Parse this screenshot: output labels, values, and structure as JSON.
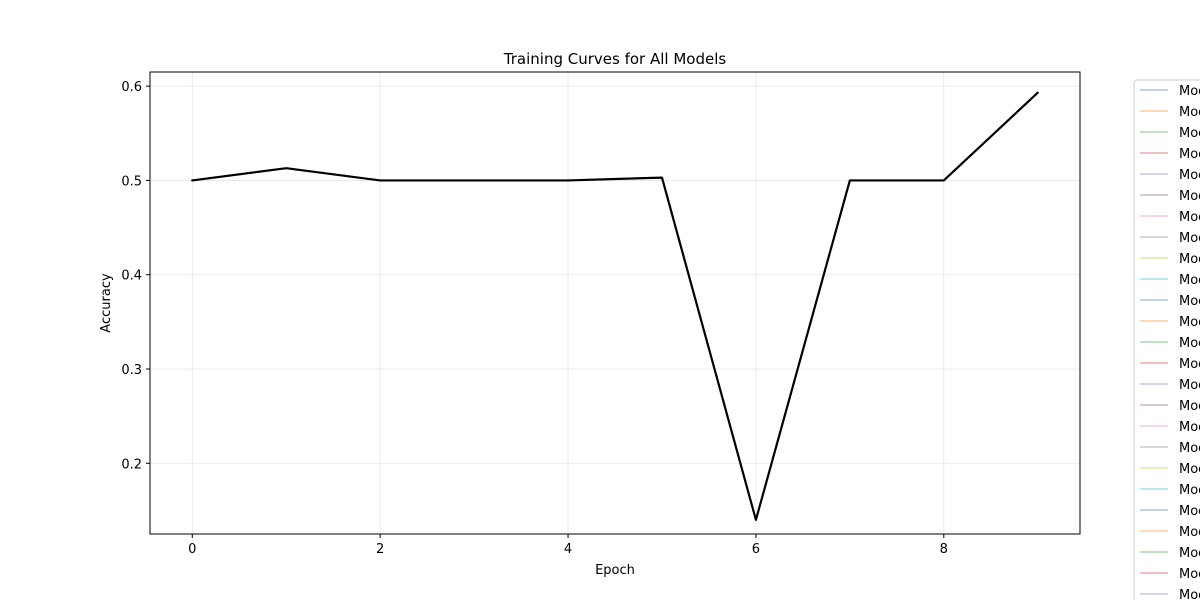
{
  "chart_data": {
    "type": "line",
    "title": "Training Curves for All Models",
    "xlabel": "Epoch",
    "ylabel": "Accuracy",
    "xlim": [
      -0.45,
      9.45
    ],
    "ylim": [
      0.125,
      0.615
    ],
    "xticks": [
      0,
      2,
      4,
      6,
      8
    ],
    "xtick_labels": [
      "0",
      "2",
      "4",
      "6",
      "8"
    ],
    "yticks": [
      0.2,
      0.3,
      0.4,
      0.5,
      0.6
    ],
    "ytick_labels": [
      "0.2",
      "0.3",
      "0.4",
      "0.5",
      "0.6"
    ],
    "grid": true,
    "legend_position": "outside-right",
    "x": [
      0,
      1,
      2,
      3,
      4,
      5,
      6,
      7,
      8,
      9
    ],
    "series": [
      {
        "values": [
          0.5,
          0.513,
          0.5,
          0.5,
          0.5,
          0.503,
          0.14,
          0.5,
          0.5,
          0.593
        ],
        "color": "#000000"
      }
    ],
    "legend": {
      "entry_label": "Moc",
      "colors": [
        "#1f77b4",
        "#ff7f0e",
        "#2ca02c",
        "#d62728",
        "#9467bd",
        "#8c564b",
        "#e377c2",
        "#7f7f7f",
        "#bcbd22",
        "#17becf",
        "#1f77b4",
        "#ff7f0e",
        "#2ca02c",
        "#d62728",
        "#9467bd",
        "#8c564b",
        "#e377c2",
        "#7f7f7f",
        "#bcbd22",
        "#17becf",
        "#1f77b4",
        "#ff7f0e",
        "#2ca02c",
        "#d62728",
        "#9467bd"
      ]
    }
  }
}
